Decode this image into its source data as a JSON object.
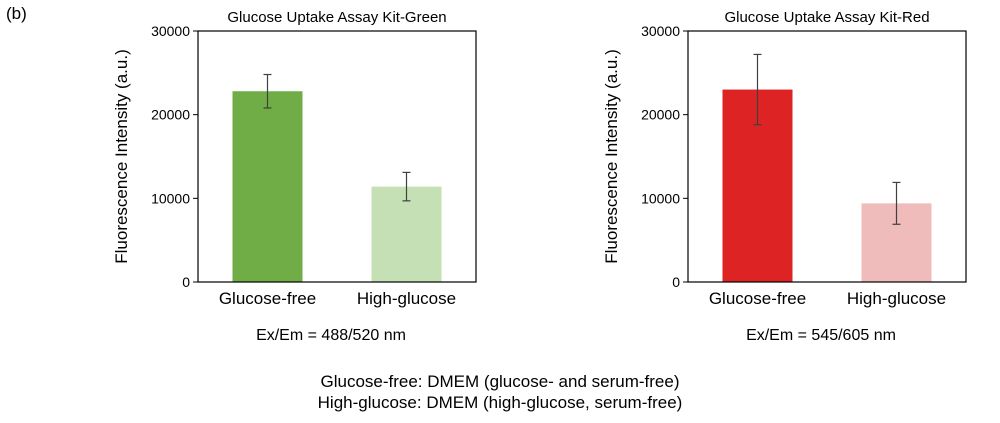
{
  "figure_label": "(b)",
  "chart_data": [
    {
      "type": "bar",
      "title": "Glucose Uptake Assay Kit-Green",
      "ylabel": "Fluorescence Intensity  (a.u.)",
      "xlabel": "",
      "caption": "Ex/Em = 488/520 nm",
      "categories": [
        "Glucose-free",
        "High-glucose"
      ],
      "values": [
        22800,
        11400
      ],
      "errors": [
        2000,
        1700
      ],
      "colors": [
        "#70ad47",
        "#c5e0b4"
      ],
      "ylim": [
        0,
        30000
      ],
      "yticks": [
        0,
        10000,
        20000,
        30000
      ],
      "ytick_labels": [
        "0",
        "10000",
        "20000",
        "30000"
      ],
      "grid": false,
      "legend": "none"
    },
    {
      "type": "bar",
      "title": "Glucose Uptake Assay Kit-Red",
      "ylabel": "Fluorescence Intensity  (a.u.)",
      "xlabel": "",
      "caption": "Ex/Em = 545/605 nm",
      "categories": [
        "Glucose-free",
        "High-glucose"
      ],
      "values": [
        23000,
        9400
      ],
      "errors": [
        4200,
        2500
      ],
      "colors": [
        "#de2325",
        "#f0bbbb"
      ],
      "ylim": [
        0,
        30000
      ],
      "yticks": [
        0,
        10000,
        20000,
        30000
      ],
      "ytick_labels": [
        "0",
        "10000",
        "20000",
        "30000"
      ],
      "grid": false,
      "legend": "none"
    }
  ],
  "footnotes": [
    "Glucose-free: DMEM (glucose- and serum-free)",
    "High-glucose: DMEM (high-glucose, serum-free)"
  ]
}
